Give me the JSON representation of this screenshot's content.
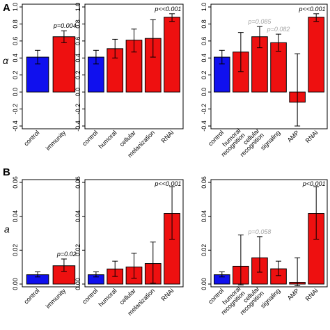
{
  "figure": {
    "row_letters": [
      "A",
      "B"
    ],
    "row_ylabels": [
      "α",
      "a"
    ],
    "colors": {
      "control": "#1010ee",
      "treatment": "#ee1010",
      "significant_label": "#000000",
      "marginal_label": "#a6a6a6",
      "axis": "#000000"
    }
  },
  "chart_data": [
    {
      "type": "bar",
      "row": 0,
      "col": 0,
      "ylabel": "α",
      "ylim": [
        -0.4,
        1.0
      ],
      "yticks": [
        "-0.4",
        "-0.2",
        "0.0",
        "0.2",
        "0.4",
        "0.6",
        "0.8",
        "1.0"
      ],
      "categories": [
        "control",
        "immunity"
      ],
      "values": [
        0.41,
        0.65
      ],
      "err_low": [
        0.33,
        0.58
      ],
      "err_high": [
        0.49,
        0.72
      ],
      "bar_colors": [
        "control",
        "treatment"
      ],
      "annotations": [
        {
          "index": 1,
          "text": "p=0.004",
          "style": "significant"
        }
      ]
    },
    {
      "type": "bar",
      "row": 0,
      "col": 1,
      "ylim": [
        -0.4,
        1.0
      ],
      "yticks": [
        "-0.4",
        "-0.2",
        "0.0",
        "0.2",
        "0.4",
        "0.6",
        "0.8",
        "1.0"
      ],
      "categories": [
        "control",
        "humoral",
        "cellular",
        "melanization",
        "RNAi"
      ],
      "values": [
        0.41,
        0.51,
        0.61,
        0.63,
        0.88
      ],
      "err_low": [
        0.33,
        0.4,
        0.47,
        0.41,
        0.83
      ],
      "err_high": [
        0.49,
        0.62,
        0.74,
        0.85,
        0.92
      ],
      "bar_colors": [
        "control",
        "treatment",
        "treatment",
        "treatment",
        "treatment"
      ],
      "annotations": [
        {
          "index": 4,
          "text": "p<<0.001",
          "style": "significant"
        }
      ]
    },
    {
      "type": "bar",
      "row": 0,
      "col": 2,
      "ylim": [
        -0.4,
        1.0
      ],
      "yticks": [
        "-0.4",
        "-0.2",
        "0.0",
        "0.2",
        "0.4",
        "0.6",
        "0.8",
        "1.0"
      ],
      "categories": [
        "control",
        "humoral recognition",
        "cellular recognition",
        "signaling",
        "AMP",
        "RNAi"
      ],
      "values": [
        0.41,
        0.47,
        0.65,
        0.58,
        -0.12,
        0.88
      ],
      "err_low": [
        0.33,
        0.24,
        0.52,
        0.48,
        -0.4,
        0.83
      ],
      "err_high": [
        0.49,
        0.7,
        0.77,
        0.68,
        0.45,
        0.92
      ],
      "bar_colors": [
        "control",
        "treatment",
        "treatment",
        "treatment",
        "treatment",
        "treatment"
      ],
      "annotations": [
        {
          "index": 2,
          "text": "p=0.085",
          "style": "marginal"
        },
        {
          "index": 3,
          "text": "p=0.082",
          "style": "marginal"
        },
        {
          "index": 5,
          "text": "p<<0.001",
          "style": "significant"
        }
      ]
    },
    {
      "type": "bar",
      "row": 1,
      "col": 0,
      "ylabel": "a",
      "ylim": [
        0,
        0.06
      ],
      "yticks": [
        "0.00",
        "0.02",
        "0.04",
        "0.06"
      ],
      "categories": [
        "control",
        "immunity"
      ],
      "values": [
        0.0055,
        0.0108
      ],
      "err_low": [
        0.0042,
        0.0075
      ],
      "err_high": [
        0.0072,
        0.0148
      ],
      "bar_colors": [
        "control",
        "treatment"
      ],
      "annotations": [
        {
          "index": 1,
          "text": "p=0.02",
          "style": "significant"
        }
      ]
    },
    {
      "type": "bar",
      "row": 1,
      "col": 1,
      "ylim": [
        0,
        0.06
      ],
      "yticks": [
        "0.00",
        "0.02",
        "0.04",
        "0.06"
      ],
      "categories": [
        "control",
        "humoral",
        "cellular",
        "melanization",
        "RNAi"
      ],
      "values": [
        0.0055,
        0.0089,
        0.0101,
        0.0121,
        0.0417
      ],
      "err_low": [
        0.0042,
        0.0045,
        0.0035,
        0.0005,
        0.0265
      ],
      "err_high": [
        0.0072,
        0.0135,
        0.0182,
        0.0248,
        0.0575
      ],
      "bar_colors": [
        "control",
        "treatment",
        "treatment",
        "treatment",
        "treatment"
      ],
      "annotations": [
        {
          "index": 4,
          "text": "p<<0.001",
          "style": "significant"
        }
      ]
    },
    {
      "type": "bar",
      "row": 1,
      "col": 2,
      "ylim": [
        0,
        0.06
      ],
      "yticks": [
        "0.00",
        "0.02",
        "0.04",
        "0.06"
      ],
      "categories": [
        "control",
        "humoral recognition",
        "cellular recognition",
        "signaling",
        "AMP",
        "RNAi"
      ],
      "values": [
        0.0055,
        0.0105,
        0.0155,
        0.009,
        0.001,
        0.0417
      ],
      "err_low": [
        0.0042,
        -0.0005,
        0.007,
        0.005,
        -0.001,
        0.0265
      ],
      "err_high": [
        0.0072,
        0.029,
        0.028,
        0.0135,
        0.0155,
        0.0575
      ],
      "bar_colors": [
        "control",
        "treatment",
        "treatment",
        "treatment",
        "treatment",
        "treatment"
      ],
      "annotations": [
        {
          "index": 2,
          "text": "p=0.058",
          "style": "marginal"
        },
        {
          "index": 5,
          "text": "p<0.001",
          "style": "significant"
        }
      ]
    }
  ]
}
